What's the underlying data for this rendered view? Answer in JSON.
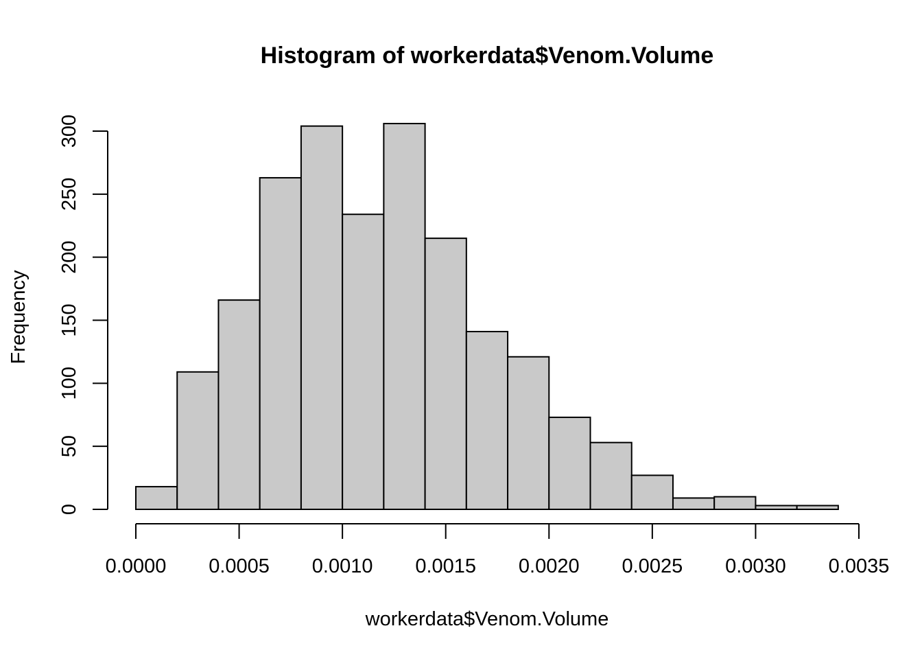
{
  "chart_data": {
    "type": "bar",
    "title": "Histogram of workerdata$Venom.Volume",
    "xlabel": "workerdata$Venom.Volume",
    "ylabel": "Frequency",
    "bin_edges": [
      0.0,
      0.0002,
      0.0004,
      0.0006,
      0.0008,
      0.001,
      0.0012,
      0.0014,
      0.0016,
      0.0018,
      0.002,
      0.0022,
      0.0024,
      0.0026,
      0.0028,
      0.003,
      0.0032,
      0.0034
    ],
    "values": [
      18,
      109,
      166,
      263,
      304,
      234,
      306,
      215,
      141,
      121,
      73,
      53,
      27,
      9,
      10,
      3,
      3
    ],
    "xlim": [
      0.0,
      0.0035
    ],
    "ylim": [
      0,
      300
    ],
    "x_ticks": [
      0.0,
      0.0005,
      0.001,
      0.0015,
      0.002,
      0.0025,
      0.003,
      0.0035
    ],
    "x_tick_labels": [
      "0.0000",
      "0.0005",
      "0.0010",
      "0.0015",
      "0.0020",
      "0.0025",
      "0.0030",
      "0.0035"
    ],
    "y_ticks": [
      0,
      50,
      100,
      150,
      200,
      250,
      300
    ],
    "y_tick_labels": [
      "0",
      "50",
      "100",
      "150",
      "200",
      "250",
      "300"
    ],
    "grid": false,
    "bar_color": "#c9c9c9",
    "bar_edge_color": "#000000"
  }
}
